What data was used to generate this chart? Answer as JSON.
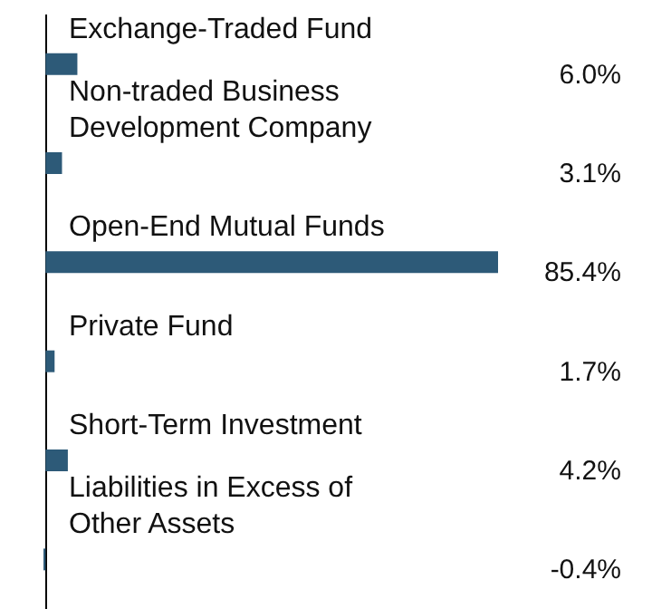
{
  "chart_data": {
    "type": "bar",
    "orientation": "horizontal",
    "color": "#2d5a78",
    "categories": [
      "Exchange-Traded Fund",
      "Non-traded Business Development Company",
      "Open-End Mutual Funds",
      "Private Fund",
      "Short-Term Investment",
      "Liabilities in Excess of Other Assets"
    ],
    "values": [
      6.0,
      3.1,
      85.4,
      1.7,
      4.2,
      -0.4
    ],
    "value_labels": [
      "6.0%",
      "3.1%",
      "85.4%",
      "1.7%",
      "4.2%",
      "-0.4%"
    ],
    "grid": false
  }
}
